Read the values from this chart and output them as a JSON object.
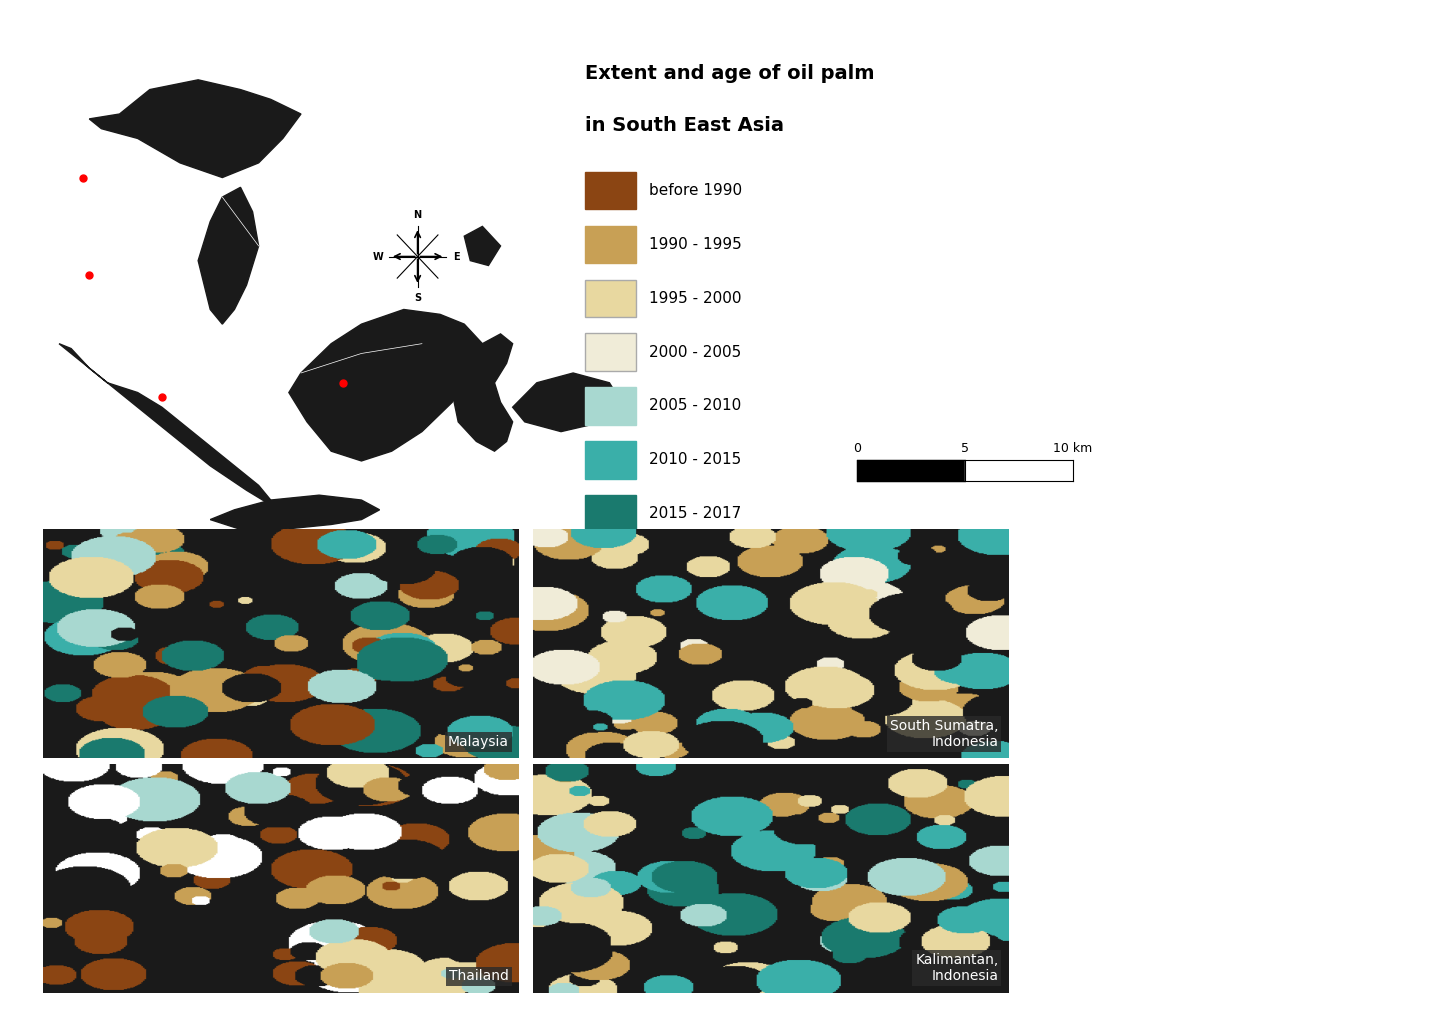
{
  "title_line1": "Extent and age of oil palm",
  "title_line2": "in South East Asia",
  "legend_entries": [
    {
      "label": "before 1990",
      "color": "#8B4513"
    },
    {
      "label": "1990 - 1995",
      "color": "#C8A055"
    },
    {
      "label": "1995 - 2000",
      "color": "#E8D8A0"
    },
    {
      "label": "2000 - 2005",
      "color": "#F0ECD8"
    },
    {
      "label": "2005 - 2010",
      "color": "#A8D8D0"
    },
    {
      "label": "2010 - 2015",
      "color": "#3AAFA9"
    },
    {
      "label": "2015 - 2017",
      "color": "#1A7A6E"
    }
  ],
  "panel_labels": [
    "Malaysia",
    "South Sumatra,\nIndonesia",
    "Thailand",
    "Kalimantan,\nIndonesia"
  ],
  "scale_bar_label": "10 km",
  "scale_bar_ticks": [
    "0",
    "5",
    "10 km"
  ],
  "background_color": "#FFFFFF",
  "map_land_color": "#1A1A1A",
  "map_border_color": "#FFFFFF",
  "panel_bg_color": "#1A1A1A",
  "label_bg_color": "#2A2A2A",
  "label_text_color": "#FFFFFF",
  "title_fontsize": 14,
  "legend_fontsize": 11,
  "label_fontsize": 10
}
